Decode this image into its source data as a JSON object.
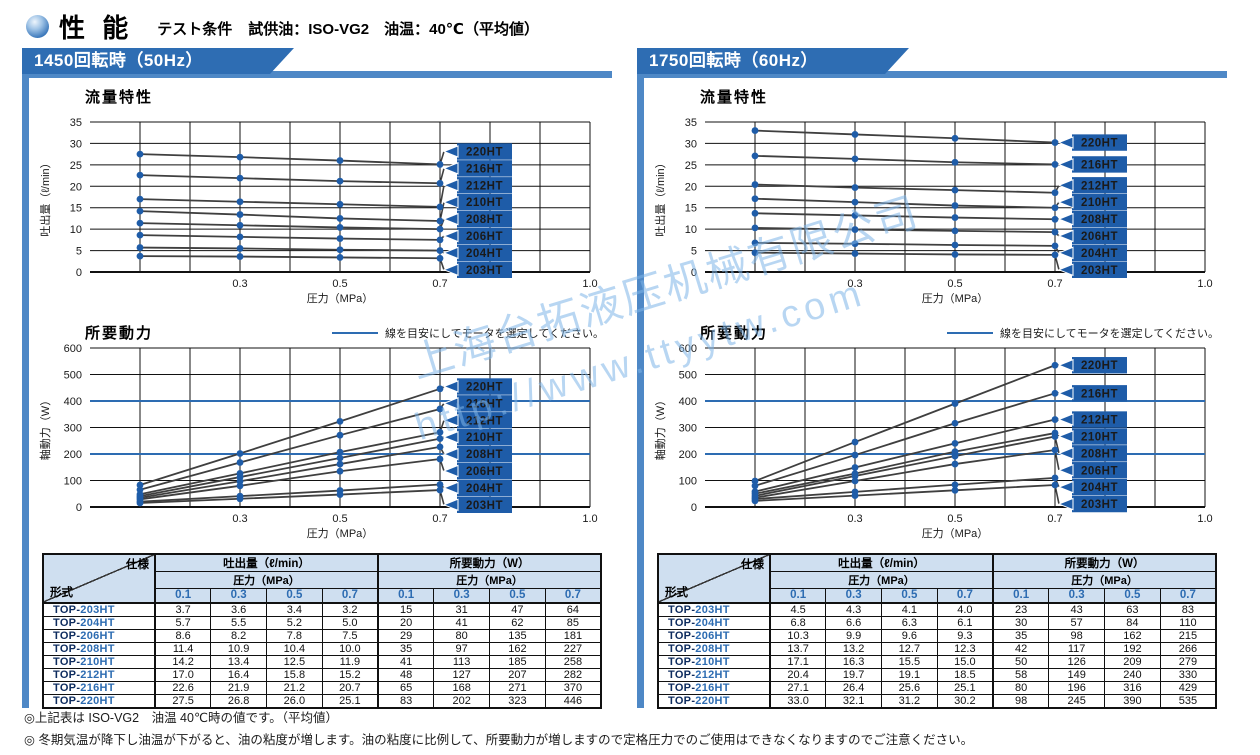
{
  "header": {
    "icon": "sphere-icon",
    "title": "性 能",
    "test_label": "テスト条件",
    "test_conditions": "試供油：ISO-VG2　油温：40℃（平均値）"
  },
  "watermark": {
    "line1": "上海台拓液压机械有限公司",
    "line2": "http://www.ttyytw.com"
  },
  "colors": {
    "banner_blue": "#2e6db3",
    "strip_blue": "#4e88c6",
    "label_box_blue": "#1e5ca8",
    "table_header_bg": "#cfdff0",
    "header_number_blue": "#2d6cb2",
    "model_prefix_navy": "#0d2b5e",
    "model_number_blue": "#2d6cb2",
    "guide_line_blue": "#2d6cb2",
    "series_line_gray": "#3f3f3f",
    "dot_blue": "#1e5ca8",
    "watermark_blue": "#7db4e8"
  },
  "panels": [
    {
      "id": "50hz",
      "banner": "1450回転時（50Hz）",
      "table": {
        "corner_top": "仕様",
        "corner_bottom": "形式",
        "flow_group": "吐出量（ℓ/min）",
        "power_group": "所要動力（W）",
        "pressure_header": "圧力（MPa）",
        "pressure_cols": [
          "0.1",
          "0.3",
          "0.5",
          "0.7"
        ],
        "rows": [
          {
            "model": "TOP-203HT",
            "flow": [
              "3.7",
              "3.6",
              "3.4",
              "3.2"
            ],
            "power": [
              "15",
              "31",
              "47",
              "64"
            ]
          },
          {
            "model": "TOP-204HT",
            "flow": [
              "5.7",
              "5.5",
              "5.2",
              "5.0"
            ],
            "power": [
              "20",
              "41",
              "62",
              "85"
            ]
          },
          {
            "model": "TOP-206HT",
            "flow": [
              "8.6",
              "8.2",
              "7.8",
              "7.5"
            ],
            "power": [
              "29",
              "80",
              "135",
              "181"
            ]
          },
          {
            "model": "TOP-208HT",
            "flow": [
              "11.4",
              "10.9",
              "10.4",
              "10.0"
            ],
            "power": [
              "35",
              "97",
              "162",
              "227"
            ]
          },
          {
            "model": "TOP-210HT",
            "flow": [
              "14.2",
              "13.4",
              "12.5",
              "11.9"
            ],
            "power": [
              "41",
              "113",
              "185",
              "258"
            ]
          },
          {
            "model": "TOP-212HT",
            "flow": [
              "17.0",
              "16.4",
              "15.8",
              "15.2"
            ],
            "power": [
              "48",
              "127",
              "207",
              "282"
            ]
          },
          {
            "model": "TOP-216HT",
            "flow": [
              "22.6",
              "21.9",
              "21.2",
              "20.7"
            ],
            "power": [
              "65",
              "168",
              "271",
              "370"
            ]
          },
          {
            "model": "TOP-220HT",
            "flow": [
              "27.5",
              "26.8",
              "26.0",
              "25.1"
            ],
            "power": [
              "83",
              "202",
              "323",
              "446"
            ]
          }
        ]
      }
    },
    {
      "id": "60hz",
      "banner": "1750回転時（60Hz）",
      "table": {
        "corner_top": "仕様",
        "corner_bottom": "形式",
        "flow_group": "吐出量（ℓ/min）",
        "power_group": "所要動力（W）",
        "pressure_header": "圧力（MPa）",
        "pressure_cols": [
          "0.1",
          "0.3",
          "0.5",
          "0.7"
        ],
        "rows": [
          {
            "model": "TOP-203HT",
            "flow": [
              "4.5",
              "4.3",
              "4.1",
              "4.0"
            ],
            "power": [
              "23",
              "43",
              "63",
              "83"
            ]
          },
          {
            "model": "TOP-204HT",
            "flow": [
              "6.8",
              "6.6",
              "6.3",
              "6.1"
            ],
            "power": [
              "30",
              "57",
              "84",
              "110"
            ]
          },
          {
            "model": "TOP-206HT",
            "flow": [
              "10.3",
              "9.9",
              "9.6",
              "9.3"
            ],
            "power": [
              "35",
              "98",
              "162",
              "215"
            ]
          },
          {
            "model": "TOP-208HT",
            "flow": [
              "13.7",
              "13.2",
              "12.7",
              "12.3"
            ],
            "power": [
              "42",
              "117",
              "192",
              "266"
            ]
          },
          {
            "model": "TOP-210HT",
            "flow": [
              "17.1",
              "16.3",
              "15.5",
              "15.0"
            ],
            "power": [
              "50",
              "126",
              "209",
              "279"
            ]
          },
          {
            "model": "TOP-212HT",
            "flow": [
              "20.4",
              "19.7",
              "19.1",
              "18.5"
            ],
            "power": [
              "58",
              "149",
              "240",
              "330"
            ]
          },
          {
            "model": "TOP-216HT",
            "flow": [
              "27.1",
              "26.4",
              "25.6",
              "25.1"
            ],
            "power": [
              "80",
              "196",
              "316",
              "429"
            ]
          },
          {
            "model": "TOP-220HT",
            "flow": [
              "33.0",
              "32.1",
              "31.2",
              "30.2"
            ],
            "power": [
              "98",
              "245",
              "390",
              "535"
            ]
          }
        ]
      }
    }
  ],
  "chart_data": [
    {
      "id": "flow-50hz",
      "panel": "1450回転時（50Hz）",
      "type": "line",
      "title": "流量特性",
      "xlabel": "圧力（MPa）",
      "ylabel": "吐出量（ℓ/min）",
      "x": [
        0.1,
        0.3,
        0.5,
        0.7
      ],
      "xticks": [
        "0.3",
        "0.5",
        "0.7",
        "1.0"
      ],
      "xlim": [
        0,
        1.0
      ],
      "ylim": [
        0,
        35
      ],
      "ystep": 5,
      "grid": true,
      "series": [
        {
          "name": "220HT",
          "values": [
            27.5,
            26.8,
            26.0,
            25.1
          ]
        },
        {
          "name": "216HT",
          "values": [
            22.6,
            21.9,
            21.2,
            20.7
          ]
        },
        {
          "name": "212HT",
          "values": [
            17.0,
            16.4,
            15.8,
            15.2
          ]
        },
        {
          "name": "210HT",
          "values": [
            14.2,
            13.4,
            12.5,
            11.9
          ]
        },
        {
          "name": "208HT",
          "values": [
            11.4,
            10.9,
            10.4,
            10.0
          ]
        },
        {
          "name": "206HT",
          "values": [
            8.6,
            8.2,
            7.8,
            7.5
          ]
        },
        {
          "name": "204HT",
          "values": [
            5.7,
            5.5,
            5.2,
            5.0
          ]
        },
        {
          "name": "203HT",
          "values": [
            3.7,
            3.6,
            3.4,
            3.2
          ]
        }
      ]
    },
    {
      "id": "power-50hz",
      "panel": "1450回転時（50Hz）",
      "type": "line",
      "title": "所要動力",
      "legend": "線を目安にしてモータを選定してください。",
      "xlabel": "圧力（MPa）",
      "ylabel": "軸動力（W）",
      "x": [
        0.1,
        0.3,
        0.5,
        0.7
      ],
      "xticks": [
        "0.3",
        "0.5",
        "0.7",
        "1.0"
      ],
      "xlim": [
        0,
        1.0
      ],
      "ylim": [
        0,
        600
      ],
      "ystep": 100,
      "grid": true,
      "guide_lines": [
        200,
        400
      ],
      "series": [
        {
          "name": "220HT",
          "values": [
            83,
            202,
            323,
            446
          ]
        },
        {
          "name": "216HT",
          "values": [
            65,
            168,
            271,
            370
          ]
        },
        {
          "name": "212HT",
          "values": [
            48,
            127,
            207,
            282
          ]
        },
        {
          "name": "210HT",
          "values": [
            41,
            113,
            185,
            258
          ]
        },
        {
          "name": "208HT",
          "values": [
            35,
            97,
            162,
            227
          ]
        },
        {
          "name": "206HT",
          "values": [
            29,
            80,
            135,
            181
          ]
        },
        {
          "name": "204HT",
          "values": [
            20,
            41,
            62,
            85
          ]
        },
        {
          "name": "203HT",
          "values": [
            15,
            31,
            47,
            64
          ]
        }
      ]
    },
    {
      "id": "flow-60hz",
      "panel": "1750回転時（60Hz）",
      "type": "line",
      "title": "流量特性",
      "xlabel": "圧力（MPa）",
      "ylabel": "吐出量（ℓ/min）",
      "x": [
        0.1,
        0.3,
        0.5,
        0.7
      ],
      "xticks": [
        "0.3",
        "0.5",
        "0.7",
        "1.0"
      ],
      "xlim": [
        0,
        1.0
      ],
      "ylim": [
        0,
        35
      ],
      "ystep": 5,
      "grid": true,
      "series": [
        {
          "name": "220HT",
          "values": [
            33.0,
            32.1,
            31.2,
            30.2
          ]
        },
        {
          "name": "216HT",
          "values": [
            27.1,
            26.4,
            25.6,
            25.1
          ]
        },
        {
          "name": "212HT",
          "values": [
            20.4,
            19.7,
            19.1,
            18.5
          ]
        },
        {
          "name": "210HT",
          "values": [
            17.1,
            16.3,
            15.5,
            15.0
          ]
        },
        {
          "name": "208HT",
          "values": [
            13.7,
            13.2,
            12.7,
            12.3
          ]
        },
        {
          "name": "206HT",
          "values": [
            10.3,
            9.9,
            9.6,
            9.3
          ]
        },
        {
          "name": "204HT",
          "values": [
            6.8,
            6.6,
            6.3,
            6.1
          ]
        },
        {
          "name": "203HT",
          "values": [
            4.5,
            4.3,
            4.1,
            4.0
          ]
        }
      ]
    },
    {
      "id": "power-60hz",
      "panel": "1750回転時（60Hz）",
      "type": "line",
      "title": "所要動力",
      "legend": "線を目安にしてモータを選定してください。",
      "xlabel": "圧力（MPa）",
      "ylabel": "軸動力（W）",
      "x": [
        0.1,
        0.3,
        0.5,
        0.7
      ],
      "xticks": [
        "0.3",
        "0.5",
        "0.7",
        "1.0"
      ],
      "xlim": [
        0,
        1.0
      ],
      "ylim": [
        0,
        600
      ],
      "ystep": 100,
      "grid": true,
      "guide_lines": [
        200,
        400
      ],
      "series": [
        {
          "name": "220HT",
          "values": [
            98,
            245,
            390,
            535
          ]
        },
        {
          "name": "216HT",
          "values": [
            80,
            196,
            316,
            429
          ]
        },
        {
          "name": "212HT",
          "values": [
            58,
            149,
            240,
            330
          ]
        },
        {
          "name": "210HT",
          "values": [
            50,
            126,
            209,
            279
          ]
        },
        {
          "name": "208HT",
          "values": [
            42,
            117,
            192,
            266
          ]
        },
        {
          "name": "206HT",
          "values": [
            35,
            98,
            162,
            215
          ]
        },
        {
          "name": "204HT",
          "values": [
            30,
            57,
            84,
            110
          ]
        },
        {
          "name": "203HT",
          "values": [
            23,
            43,
            63,
            83
          ]
        }
      ]
    }
  ],
  "notes": [
    "◎上記表は ISO-VG2　油温 40℃時の値です。（平均値）",
    "◎ 冬期気温が降下し油温が下がると、油の粘度が増します。油の粘度に比例して、所要動力が増しますので定格圧力でのご使用はできなくなりますのでご注意ください。"
  ]
}
